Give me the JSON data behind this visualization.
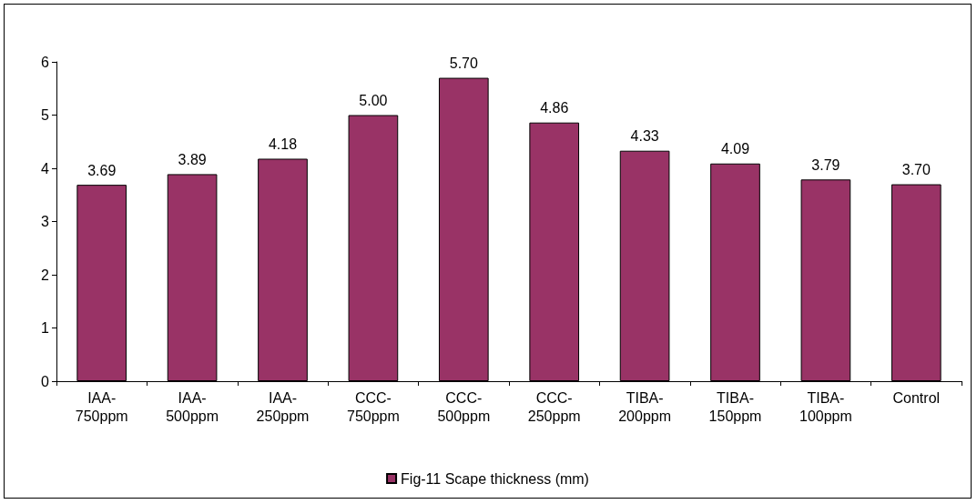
{
  "chart_data": {
    "type": "bar",
    "categories": [
      "IAA-750ppm",
      "IAA-500ppm",
      "IAA-250ppm",
      "CCC-750ppm",
      "CCC-500ppm",
      "CCC-250ppm",
      "TIBA-200ppm",
      "TIBA-150ppm",
      "TIBA-100ppm",
      "Control"
    ],
    "series": [
      {
        "name": "Fig-11 Scape thickness (mm)",
        "color": "#993366",
        "values": [
          3.69,
          3.89,
          4.18,
          5.0,
          5.7,
          4.86,
          4.33,
          4.09,
          3.79,
          3.7
        ],
        "value_labels": [
          "3.69",
          "3.89",
          "4.18",
          "5.00",
          "5.70",
          "4.86",
          "4.33",
          "4.09",
          "3.79",
          "3.70"
        ]
      }
    ],
    "ylim": [
      0,
      6
    ],
    "yticks": [
      0,
      1,
      2,
      3,
      4,
      5,
      6
    ],
    "grid": false,
    "legend": "bottom"
  }
}
